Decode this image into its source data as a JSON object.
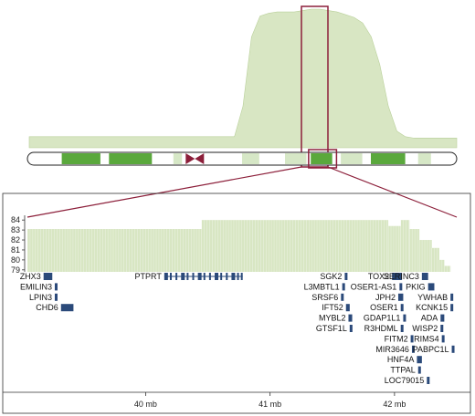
{
  "colors": {
    "coverage_fill": "#d8e6c3",
    "coverage_stroke": "#b9d09a",
    "band_green": "#5aa83c",
    "band_light": "#d6e7c6",
    "highlight": "#8c1f3a",
    "gene": "#2b4a7a",
    "frame": "#333333"
  },
  "chart_data": [
    {
      "type": "area",
      "panel": "chromosome-wide copy-number profile",
      "x": [
        0,
        4,
        8,
        12,
        16,
        20,
        24,
        28,
        32,
        36,
        40,
        44,
        48,
        50,
        52,
        54,
        56,
        58,
        60,
        62,
        64,
        66,
        68,
        70,
        72,
        74,
        76,
        78,
        80,
        82,
        84,
        86,
        88,
        90,
        92,
        94,
        96,
        98,
        100
      ],
      "values": [
        8,
        8,
        8,
        8,
        8,
        8,
        8,
        8,
        8,
        8,
        8,
        8,
        8,
        30,
        80,
        95,
        97,
        98,
        98,
        98,
        99,
        100,
        100,
        99,
        98,
        96,
        94,
        90,
        80,
        60,
        30,
        12,
        8,
        7,
        7,
        7,
        7,
        7,
        7
      ],
      "ylim": [
        0,
        100
      ]
    },
    {
      "type": "bar",
      "panel": "zoomed copy-number profile",
      "ytick_labels": [
        "84",
        "83",
        "82",
        "81",
        "80",
        "79"
      ],
      "ylim": [
        78.8,
        84.2
      ],
      "xtick_labels": [
        "40 mb",
        "41 mb",
        "42 mb"
      ],
      "xtick_values": [
        40,
        41,
        42
      ],
      "xlim": [
        39.05,
        42.5
      ],
      "segments": [
        {
          "start": 39.05,
          "end": 40.45,
          "value": 83.1
        },
        {
          "start": 40.45,
          "end": 41.95,
          "value": 84.0
        },
        {
          "start": 41.95,
          "end": 42.05,
          "value": 83.4
        },
        {
          "start": 42.05,
          "end": 42.12,
          "value": 84.0
        },
        {
          "start": 42.12,
          "end": 42.2,
          "value": 83.1
        },
        {
          "start": 42.2,
          "end": 42.3,
          "value": 82.0
        },
        {
          "start": 42.3,
          "end": 42.36,
          "value": 81.2
        },
        {
          "start": 42.36,
          "end": 42.4,
          "value": 80.0
        },
        {
          "start": 42.4,
          "end": 42.45,
          "value": 79.4
        }
      ]
    }
  ],
  "genes": [
    {
      "name": "ZHX3",
      "label_side": "left",
      "row": 0,
      "start": 39.18,
      "end": 39.25
    },
    {
      "name": "EMILIN3",
      "label_side": "left",
      "row": 1,
      "start": 39.27,
      "end": 39.28
    },
    {
      "name": "LPIN3",
      "label_side": "left",
      "row": 2,
      "start": 39.27,
      "end": 39.28
    },
    {
      "name": "CHD6",
      "label_side": "left",
      "row": 3,
      "start": 39.32,
      "end": 39.42
    },
    {
      "name": "PTPRT",
      "label_side": "left",
      "row": 0,
      "start": 40.15,
      "end": 40.78
    },
    {
      "name": "SGK2",
      "label_side": "left",
      "row": 0,
      "start": 41.6,
      "end": 41.62
    },
    {
      "name": "L3MBTL1",
      "label_side": "left",
      "row": 1,
      "start": 41.58,
      "end": 41.6
    },
    {
      "name": "SRSF6",
      "label_side": "left",
      "row": 2,
      "start": 41.57,
      "end": 41.59
    },
    {
      "name": "IFT52",
      "label_side": "left",
      "row": 3,
      "start": 41.61,
      "end": 41.64
    },
    {
      "name": "MYBL2",
      "label_side": "left",
      "row": 4,
      "start": 41.63,
      "end": 41.66
    },
    {
      "name": "GTSF1L",
      "label_side": "left",
      "row": 5,
      "start": 41.64,
      "end": 41.65
    },
    {
      "name": "TOX2",
      "label_side": "left",
      "row": 0,
      "start": 41.98,
      "end": 42.06
    },
    {
      "name": "OSER1-AS1",
      "label_side": "left",
      "row": 1,
      "start": 42.04,
      "end": 42.05
    },
    {
      "name": "JPH2",
      "label_side": "left",
      "row": 2,
      "start": 42.03,
      "end": 42.07
    },
    {
      "name": "OSER1",
      "label_side": "left",
      "row": 3,
      "start": 42.05,
      "end": 42.06
    },
    {
      "name": "GDAP1L1",
      "label_side": "left",
      "row": 4,
      "start": 42.07,
      "end": 42.09
    },
    {
      "name": "R3HDML",
      "label_side": "left",
      "row": 5,
      "start": 42.05,
      "end": 42.07
    },
    {
      "name": "FITM2",
      "label_side": "left",
      "row": 6,
      "start": 42.13,
      "end": 42.14
    },
    {
      "name": "MIR3646",
      "label_side": "left",
      "row": 7,
      "start": 42.14,
      "end": 42.15
    },
    {
      "name": "HNF4A",
      "label_side": "left",
      "row": 8,
      "start": 42.18,
      "end": 42.22
    },
    {
      "name": "TTPAL",
      "label_side": "left",
      "row": 9,
      "start": 42.19,
      "end": 42.21
    },
    {
      "name": "LOC79015",
      "label_side": "left",
      "row": 10,
      "start": 42.26,
      "end": 42.28
    },
    {
      "name": "SERINC3",
      "label_side": "left",
      "row": 0,
      "start": 42.22,
      "end": 42.27
    },
    {
      "name": "PKIG",
      "label_side": "left",
      "row": 1,
      "start": 42.27,
      "end": 42.32
    },
    {
      "name": "YWHAB",
      "label_side": "left",
      "row": 2,
      "start": 42.45,
      "end": 42.47
    },
    {
      "name": "KCNK15",
      "label_side": "left",
      "row": 3,
      "start": 42.45,
      "end": 42.46
    },
    {
      "name": "ADA",
      "label_side": "left",
      "row": 4,
      "start": 42.37,
      "end": 42.4
    },
    {
      "name": "WISP2",
      "label_side": "left",
      "row": 5,
      "start": 42.37,
      "end": 42.39
    },
    {
      "name": "RIMS4",
      "label_side": "left",
      "row": 6,
      "start": 42.38,
      "end": 42.4
    },
    {
      "name": "PABPC1L",
      "label_side": "left",
      "row": 7,
      "start": 42.46,
      "end": 42.48
    }
  ],
  "ideogram": {
    "bands": [
      {
        "from": 0.08,
        "to": 0.17,
        "tone": "dark"
      },
      {
        "from": 0.19,
        "to": 0.29,
        "tone": "dark"
      },
      {
        "from": 0.34,
        "to": 0.36,
        "tone": "light"
      },
      {
        "from": 0.5,
        "to": 0.54,
        "tone": "light"
      },
      {
        "from": 0.6,
        "to": 0.65,
        "tone": "light"
      },
      {
        "from": 0.66,
        "to": 0.71,
        "tone": "dark"
      },
      {
        "from": 0.73,
        "to": 0.78,
        "tone": "light"
      },
      {
        "from": 0.8,
        "to": 0.88,
        "tone": "dark"
      },
      {
        "from": 0.91,
        "to": 0.94,
        "tone": "light"
      }
    ],
    "centromere": 0.39,
    "highlight": {
      "from": 0.655,
      "to": 0.72
    }
  }
}
